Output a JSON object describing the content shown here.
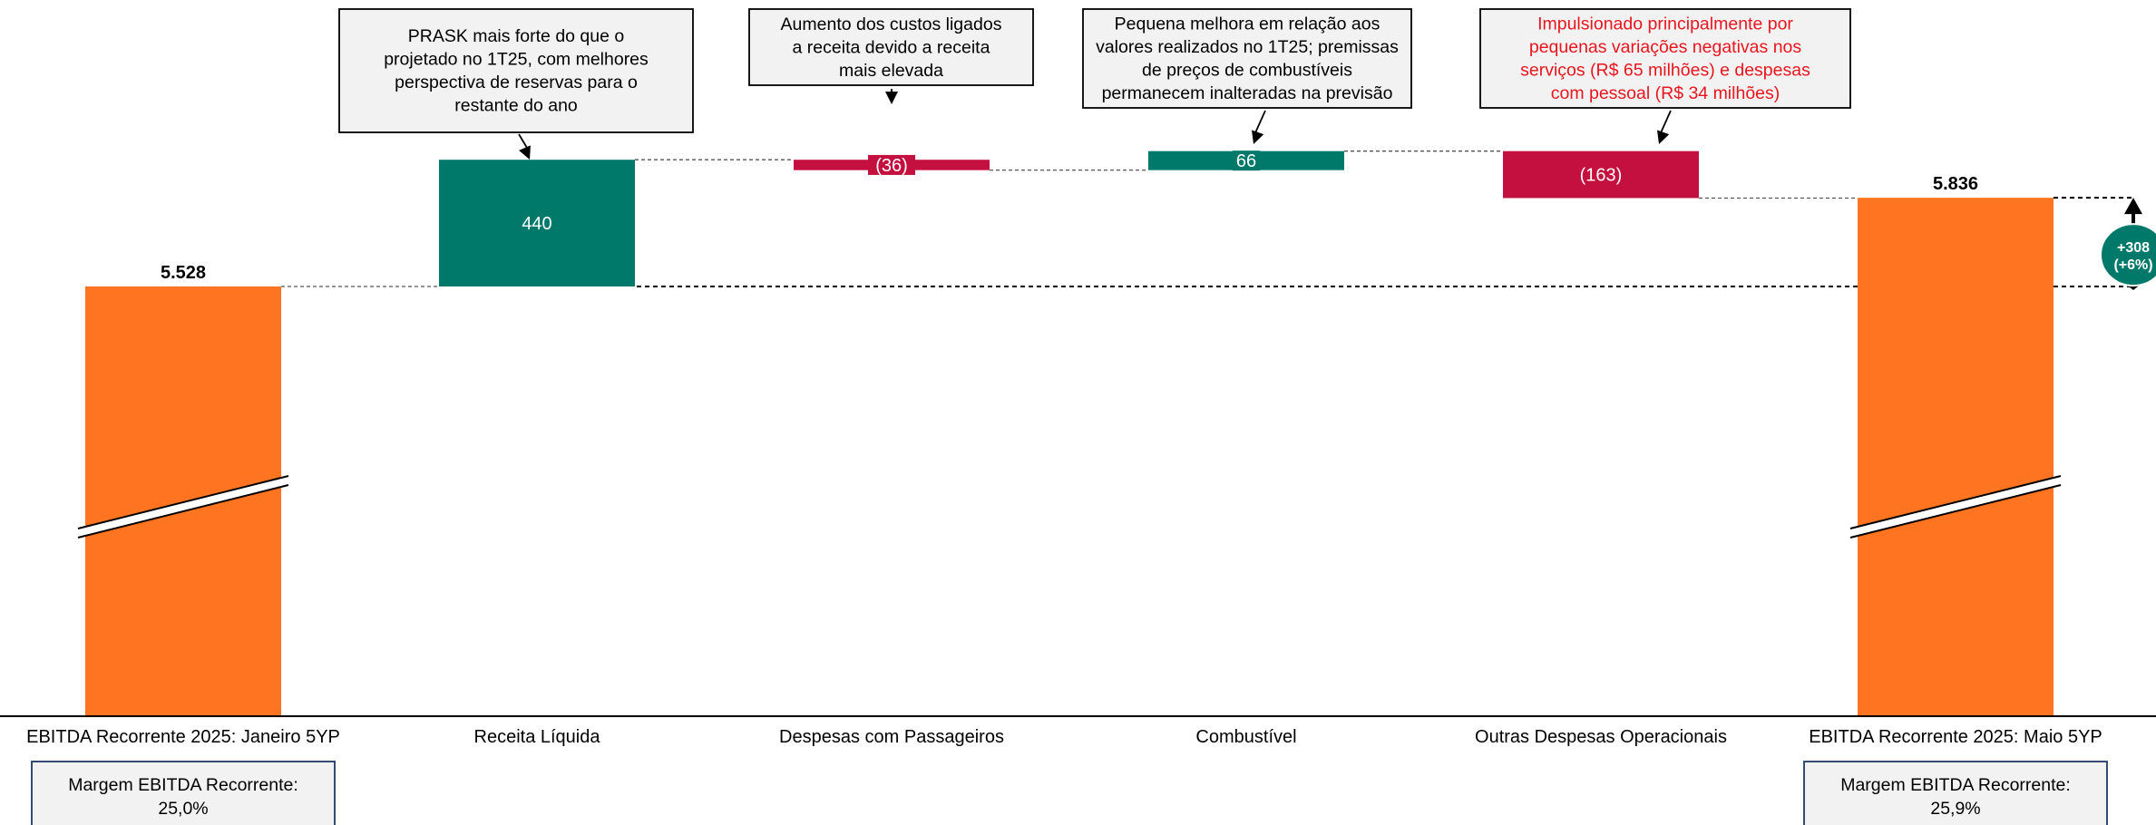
{
  "colors": {
    "total": "#ff7420",
    "increase": "#00796b",
    "decrease": "#c4103e",
    "callout_fill": "#f2f2f2",
    "callout_red_text": "#e8161e",
    "margin_box_fill": "#f2f2f2",
    "margin_box_border": "#1f3864",
    "delta_badge": "#00796b"
  },
  "chart_data": {
    "type": "waterfall",
    "value_format": "pt-BR",
    "categories": [
      "EBITDA Recorrente 2025: Janeiro 5YP",
      "Receita Líquida",
      "Despesas com Passageiros",
      "Combustível",
      "Outras Despesas Operacionais",
      "EBITDA Recorrente 2025: Maio 5YP"
    ],
    "bars": [
      {
        "category": "EBITDA Recorrente 2025: Janeiro 5YP",
        "kind": "total",
        "value": 5528,
        "label": "5.528"
      },
      {
        "category": "Receita Líquida",
        "kind": "increase",
        "value": 440,
        "label": "440"
      },
      {
        "category": "Despesas com Passageiros",
        "kind": "decrease",
        "value": -36,
        "label": "(36)"
      },
      {
        "category": "Combustível",
        "kind": "increase",
        "value": 66,
        "label": "66"
      },
      {
        "category": "Outras Despesas Operacionais",
        "kind": "decrease",
        "value": -163,
        "label": "(163)"
      },
      {
        "category": "EBITDA Recorrente 2025: Maio 5YP",
        "kind": "total",
        "value": 5836,
        "label": "5.836"
      }
    ],
    "axis_break": true,
    "delta": {
      "label_line1": "+308",
      "label_line2": "(+6%)",
      "value": 308
    }
  },
  "callouts": [
    {
      "bar_index": 1,
      "lines": [
        "PRASK mais forte do que o",
        "projetado no 1T25, com melhores",
        "perspectiva de reservas para o",
        "restante do ano"
      ],
      "text_color": "#000000"
    },
    {
      "bar_index": 2,
      "lines": [
        "Aumento dos custos ligados",
        "a receita devido a receita",
        "mais elevada"
      ],
      "text_color": "#000000"
    },
    {
      "bar_index": 3,
      "lines": [
        "Pequena melhora em relação aos",
        "valores realizados no 1T25; premissas",
        "de preços de combustíveis",
        "permanecem inalteradas na previsão"
      ],
      "text_color": "#000000"
    },
    {
      "bar_index": 4,
      "lines": [
        "Impulsionado principalmente por",
        "pequenas variações negativas nos",
        "serviços (R$ 65 milhões) e despesas",
        "com pessoal (R$ 34 milhões)"
      ],
      "text_color": "#e8161e"
    }
  ],
  "margin_boxes": [
    {
      "bar_index": 0,
      "line1": "Margem EBITDA Recorrente:",
      "line2": "25,0%"
    },
    {
      "bar_index": 5,
      "line1": "Margem EBITDA Recorrente:",
      "line2": "25,9%"
    }
  ]
}
